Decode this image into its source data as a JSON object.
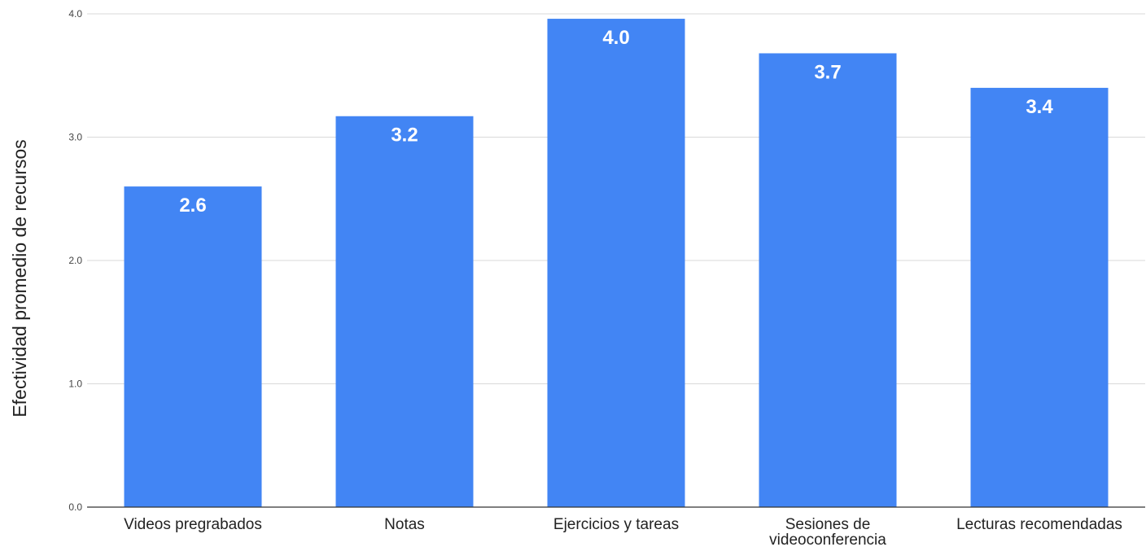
{
  "chart_data": {
    "type": "bar",
    "categories": [
      [
        "Videos pregrabados"
      ],
      [
        "Notas"
      ],
      [
        "Ejercicios y tareas"
      ],
      [
        "Sesiones de",
        "videoconferencia"
      ],
      [
        "Lecturas recomendadas"
      ]
    ],
    "values": [
      2.6,
      3.17,
      3.96,
      3.68,
      3.4
    ],
    "data_labels": [
      "2.6",
      "3.2",
      "4.0",
      "3.7",
      "3.4"
    ],
    "title": "",
    "xlabel": "",
    "ylabel": "Efectividad promedio de recursos",
    "ylim": [
      0,
      4
    ],
    "yticks": [
      "0.0",
      "1.0",
      "2.0",
      "3.0",
      "4.0"
    ],
    "grid": true,
    "legend": "none",
    "bar_color": "#4285f4"
  }
}
